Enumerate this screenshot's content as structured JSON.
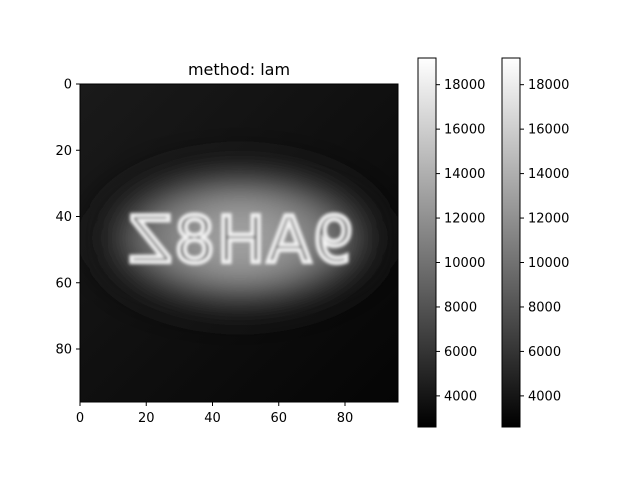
{
  "chart_data": {
    "type": "heatmap",
    "title": "method: lam",
    "xlabel": "",
    "ylabel": "",
    "image_size": [
      96,
      96
    ],
    "colormap": "gray",
    "xlim": [
      0,
      96
    ],
    "ylim": [
      96,
      0
    ],
    "x_ticks": [
      0,
      20,
      40,
      60,
      80
    ],
    "y_ticks": [
      0,
      20,
      40,
      60,
      80
    ],
    "overlay_text": "9AH8Z",
    "overlay_mirrored": true,
    "value_range": [
      2600,
      19200
    ],
    "colorbars": [
      {
        "ticks": [
          4000,
          6000,
          8000,
          10000,
          12000,
          14000,
          16000,
          18000
        ]
      },
      {
        "ticks": [
          4000,
          6000,
          8000,
          10000,
          12000,
          14000,
          16000,
          18000
        ]
      }
    ]
  }
}
